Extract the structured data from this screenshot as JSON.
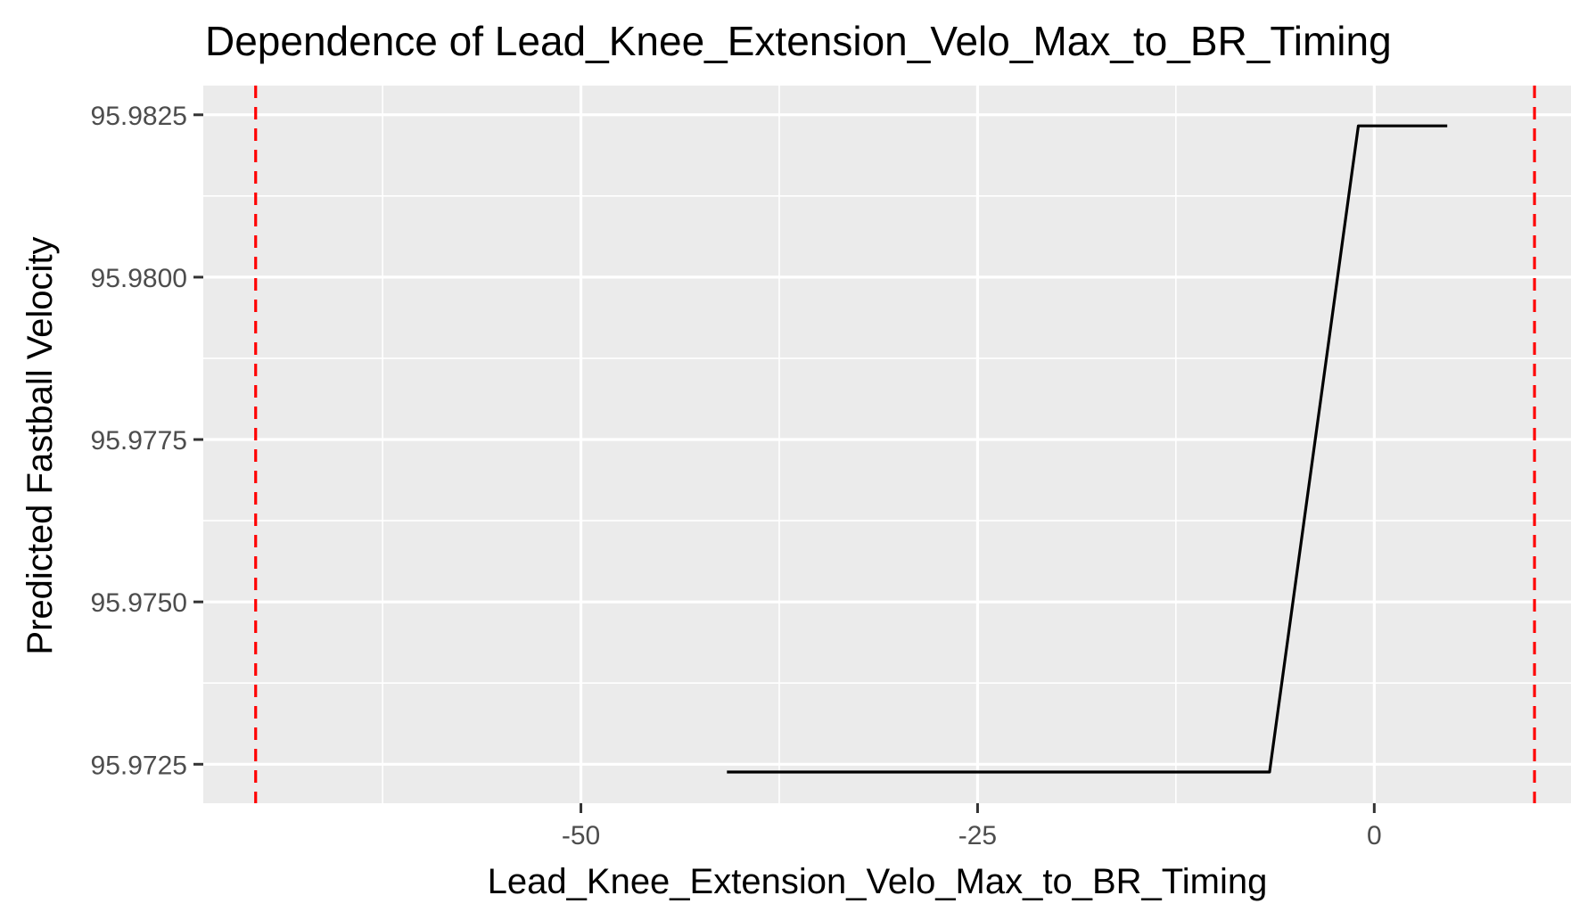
{
  "chart_data": {
    "type": "line",
    "title": "Dependence of Lead_Knee_Extension_Velo_Max_to_BR_Timing",
    "xlabel": "Lead_Knee_Extension_Velo_Max_to_BR_Timing",
    "ylabel": "Predicted Fastball Velocity",
    "xlim": [
      -73.8,
      12.4
    ],
    "ylim": [
      95.9719,
      95.98295
    ],
    "x_ticks": [
      {
        "value": -50,
        "label": "-50"
      },
      {
        "value": -25,
        "label": "-25"
      },
      {
        "value": 0,
        "label": "0"
      }
    ],
    "y_ticks": [
      {
        "value": 95.9725,
        "label": "95.9725"
      },
      {
        "value": 95.975,
        "label": "95.9750"
      },
      {
        "value": 95.9775,
        "label": "95.9775"
      },
      {
        "value": 95.98,
        "label": "95.9800"
      },
      {
        "value": 95.9825,
        "label": "95.9825"
      }
    ],
    "series": [
      {
        "color": "#000000",
        "points": [
          {
            "x": -40.8,
            "y": 95.97238
          },
          {
            "x": -6.6,
            "y": 95.97238
          },
          {
            "x": -1.0,
            "y": 95.98233
          },
          {
            "x": 4.6,
            "y": 95.98233
          }
        ]
      }
    ],
    "reference_lines": [
      {
        "x": -70.5,
        "color": "#ff0000",
        "style": "dashed"
      },
      {
        "x": 10.1,
        "color": "#ff0000",
        "style": "dashed"
      }
    ],
    "grid": true,
    "panel_background": "#ebebeb",
    "grid_color": "#ffffff"
  }
}
